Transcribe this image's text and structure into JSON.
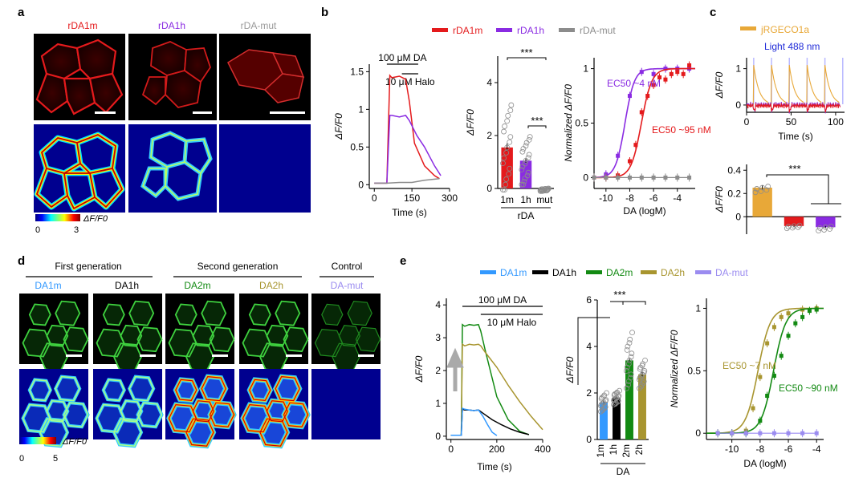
{
  "panels": {
    "a": "a",
    "b": "b",
    "c": "c",
    "d": "d",
    "e": "e"
  },
  "panel_a": {
    "titles": [
      "rDA1m",
      "rDA1h",
      "rDA-mut"
    ],
    "colorbar_label": "ΔF/F0",
    "colorbar_min": "0",
    "colorbar_max": "3",
    "colors": {
      "rDA1m": "#e41a1c",
      "rDA1h": "#8a2be2",
      "rDA-mut": "#999999"
    }
  },
  "panel_b_legend": [
    "rDA1m",
    "rDA1h",
    "rDA-mut"
  ],
  "panel_c_legend": "jRGECO1a",
  "panel_c_light": "Light 488 nm",
  "panel_d": {
    "groups": [
      "First generation",
      "Second generation",
      "Control"
    ],
    "titles": [
      "DA1m",
      "DA1h",
      "DA2m",
      "DA2h",
      "DA-mut"
    ],
    "colorbar_label": "ΔF/F0",
    "colorbar_min": "0",
    "colorbar_max": "5"
  },
  "panel_e_legend": [
    "DA1m",
    "DA1h",
    "DA2m",
    "DA2h",
    "DA-mut"
  ],
  "colors": {
    "red": "#e41a1c",
    "purple": "#8a2be2",
    "gray": "#8c8c8c",
    "orange": "#e8a838",
    "blue_light": "#3399ff",
    "blue_dark": "#1f2ad8",
    "black": "#000000",
    "green": "#138a13",
    "olive": "#a8952f",
    "lavender": "#9b8cf0"
  },
  "chart_data": [
    {
      "id": "b1",
      "type": "line",
      "title": "",
      "xlabel": "Time (s)",
      "ylabel": "ΔF/F0",
      "xlim": [
        -20,
        300
      ],
      "ylim": [
        -0.05,
        1.6
      ],
      "xticks": [
        0,
        150,
        300
      ],
      "yticks": [
        0,
        0.5,
        1.0,
        1.5
      ],
      "annotations": [
        "100 μM DA",
        "10 μM Halo"
      ],
      "series": [
        {
          "name": "rDA1m",
          "color": "#e41a1c",
          "x": [
            0,
            50,
            62,
            70,
            100,
            125,
            140,
            160,
            200,
            240,
            260
          ],
          "y": [
            0.02,
            0.02,
            1.45,
            1.42,
            1.44,
            1.4,
            1.1,
            0.55,
            0.25,
            0.12,
            0.08
          ]
        },
        {
          "name": "rDA1h",
          "color": "#8a2be2",
          "x": [
            0,
            50,
            62,
            70,
            100,
            125,
            140,
            170,
            200,
            240,
            265
          ],
          "y": [
            0.02,
            0.02,
            0.92,
            0.92,
            0.9,
            0.92,
            0.85,
            0.65,
            0.5,
            0.25,
            0.12
          ]
        },
        {
          "name": "rDA-mut",
          "color": "#8c8c8c",
          "x": [
            0,
            50,
            100,
            150,
            200,
            260
          ],
          "y": [
            0.02,
            0.02,
            0.03,
            0.03,
            0.06,
            0.08
          ]
        }
      ]
    },
    {
      "id": "b2",
      "type": "bar",
      "title": "",
      "xlabel": "rDA",
      "ylabel": "ΔF/F0",
      "categories": [
        "1m",
        "1h",
        "mut"
      ],
      "values": [
        1.55,
        1.05,
        -0.05
      ],
      "errors": [
        0.15,
        0.08,
        0.02
      ],
      "colors": [
        "#e41a1c",
        "#8a2be2",
        "#8c8c8c"
      ],
      "ylim": [
        0,
        5
      ],
      "yticks": [
        0,
        2,
        4
      ],
      "significance": [
        "***",
        "***"
      ]
    },
    {
      "id": "b3",
      "type": "line",
      "title": "",
      "xlabel": "DA (logM)",
      "ylabel": "Normalized ΔF/F0",
      "xlim": [
        -11,
        -2.5
      ],
      "ylim": [
        -0.1,
        1.1
      ],
      "xticks": [
        -10,
        -8,
        -6,
        -4
      ],
      "yticks": [
        0,
        0.5,
        1.0
      ],
      "annotations": [
        "EC50 ~4 nM",
        "EC50 ~95 nM"
      ],
      "series": [
        {
          "name": "rDA1h",
          "color": "#8a2be2",
          "ec50_log": -8.4,
          "hill": 1.1,
          "points_x": [
            -11,
            -10,
            -9,
            -8,
            -7,
            -6,
            -5,
            -4,
            -3
          ],
          "points_y": [
            0.0,
            0.03,
            0.2,
            0.75,
            0.97,
            0.95,
            1.0,
            1.0,
            1.0
          ]
        },
        {
          "name": "rDA1m",
          "color": "#e41a1c",
          "ec50_log": -7.02,
          "hill": 1.0,
          "points_x": [
            -11,
            -10,
            -9,
            -8,
            -7.5,
            -7,
            -6.5,
            -6,
            -5.5,
            -5,
            -4.5,
            -4,
            -3.5,
            -3
          ],
          "points_y": [
            0.0,
            0.0,
            0.02,
            0.15,
            0.3,
            0.6,
            0.75,
            0.85,
            0.92,
            0.9,
            0.95,
            0.97,
            0.95,
            1.03
          ]
        },
        {
          "name": "rDA-mut",
          "color": "#8c8c8c",
          "ec50_log": null,
          "hill": null,
          "points_x": [
            -11,
            -10,
            -9,
            -8,
            -7,
            -6,
            -5,
            -4,
            -3
          ],
          "points_y": [
            0,
            0,
            0,
            0,
            0,
            0,
            0,
            0,
            0
          ]
        }
      ]
    },
    {
      "id": "c1",
      "type": "line",
      "title": "",
      "xlabel": "Time (s)",
      "ylabel": "ΔF/F0",
      "xlim": [
        0,
        110
      ],
      "ylim": [
        -0.2,
        1.3
      ],
      "xticks": [
        0,
        50,
        100
      ],
      "yticks": [
        0,
        1
      ],
      "light_pulses_s": [
        8,
        28,
        48,
        68,
        88,
        108
      ],
      "series": [
        {
          "name": "jRGECO1a",
          "color": "#e8a838"
        },
        {
          "name": "rDA1h",
          "color": "#8a2be2"
        },
        {
          "name": "rDA1m",
          "color": "#e41a1c"
        }
      ]
    },
    {
      "id": "c2",
      "type": "bar",
      "title": "",
      "xlabel": "",
      "ylabel": "ΔF/F0",
      "categories": [
        "jRGECO1a",
        "rDA1m",
        "rDA1h"
      ],
      "values": [
        0.25,
        -0.08,
        -0.09
      ],
      "errors": [
        0.02,
        0.01,
        0.01
      ],
      "colors": [
        "#e8a838",
        "#e41a1c",
        "#8a2be2"
      ],
      "ylim": [
        -0.15,
        0.45
      ],
      "yticks": [
        0,
        0.2,
        0.4
      ],
      "significance": [
        "***"
      ]
    },
    {
      "id": "e1",
      "type": "line",
      "title": "",
      "xlabel": "Time (s)",
      "ylabel": "ΔF/F0",
      "xlim": [
        -20,
        400
      ],
      "ylim": [
        -0.1,
        4.2
      ],
      "xticks": [
        0,
        200,
        400
      ],
      "yticks": [
        0,
        1,
        2,
        3,
        4
      ],
      "annotations": [
        "100 μM DA",
        "10 μM Halo"
      ],
      "series": [
        {
          "name": "DA2m",
          "color": "#138a13",
          "x": [
            0,
            45,
            50,
            60,
            80,
            100,
            120,
            130,
            150,
            200,
            250,
            300,
            340
          ],
          "y": [
            0.03,
            0.03,
            3.4,
            3.35,
            3.4,
            3.38,
            3.4,
            3.2,
            2.6,
            1.2,
            0.5,
            0.15,
            0.05
          ]
        },
        {
          "name": "DA2h",
          "color": "#a8952f",
          "x": [
            0,
            45,
            50,
            60,
            80,
            100,
            120,
            130,
            150,
            200,
            250,
            300,
            350,
            400
          ],
          "y": [
            0.03,
            0.03,
            2.8,
            2.75,
            2.8,
            2.78,
            2.8,
            2.75,
            2.55,
            2.1,
            1.55,
            1.05,
            0.6,
            0.2
          ]
        },
        {
          "name": "DA1h",
          "color": "#000000",
          "x": [
            0,
            45,
            50,
            60,
            80,
            100,
            120,
            140,
            180,
            220,
            260,
            300,
            340
          ],
          "y": [
            0.03,
            0.03,
            0.82,
            0.8,
            0.8,
            0.78,
            0.8,
            0.7,
            0.5,
            0.35,
            0.22,
            0.12,
            0.05
          ]
        },
        {
          "name": "DA1m",
          "color": "#3399ff",
          "x": [
            0,
            45,
            50,
            60,
            80,
            100,
            120,
            140,
            160,
            180,
            200
          ],
          "y": [
            0.03,
            0.03,
            0.85,
            0.82,
            0.8,
            0.78,
            0.8,
            0.6,
            0.35,
            0.12,
            0.02
          ]
        }
      ]
    },
    {
      "id": "e2",
      "type": "bar",
      "title": "",
      "xlabel": "DA",
      "ylabel": "ΔF/F0",
      "categories": [
        "1m",
        "1h",
        "2m",
        "2h"
      ],
      "values": [
        1.6,
        1.8,
        3.4,
        2.8
      ],
      "errors": [
        0.1,
        0.08,
        0.12,
        0.1
      ],
      "colors": [
        "#3399ff",
        "#000000",
        "#138a13",
        "#a8952f"
      ],
      "ylim": [
        0,
        6
      ],
      "yticks": [
        0,
        2,
        4,
        6
      ],
      "significance": [
        "***"
      ]
    },
    {
      "id": "e3",
      "type": "line",
      "title": "",
      "xlabel": "DA (logM)",
      "ylabel": "Normalized ΔF/F0",
      "xlim": [
        -11.8,
        -3.5
      ],
      "ylim": [
        -0.05,
        1.08
      ],
      "xticks": [
        -10,
        -8,
        -6,
        -4
      ],
      "yticks": [
        0,
        0.5,
        1.0
      ],
      "annotations": [
        "EC50 ~7 nM",
        "EC50 ~90 nM"
      ],
      "series": [
        {
          "name": "DA2h",
          "color": "#a8952f",
          "ec50_log": -8.15,
          "hill": 1.0,
          "points_x": [
            -11,
            -10,
            -9,
            -8.5,
            -8,
            -7.5,
            -7,
            -6.5,
            -6,
            -5,
            -4
          ],
          "points_y": [
            0.0,
            0.0,
            0.02,
            0.2,
            0.45,
            0.72,
            0.85,
            0.93,
            0.96,
            0.99,
            1.0
          ]
        },
        {
          "name": "DA2m",
          "color": "#138a13",
          "ec50_log": -7.05,
          "hill": 1.0,
          "points_x": [
            -11,
            -10,
            -9,
            -8,
            -7.5,
            -7,
            -6.5,
            -6,
            -5.5,
            -5,
            -4.5,
            -4
          ],
          "points_y": [
            0.0,
            0.0,
            0.0,
            0.1,
            0.3,
            0.46,
            0.62,
            0.78,
            0.88,
            0.93,
            0.98,
            0.99
          ]
        },
        {
          "name": "DA-mut",
          "color": "#9b8cf0",
          "ec50_log": null,
          "hill": null,
          "points_x": [
            -11,
            -10,
            -9,
            -8,
            -7,
            -6,
            -5,
            -4
          ],
          "points_y": [
            0,
            0,
            0,
            0,
            0,
            0,
            0,
            0
          ]
        }
      ]
    }
  ]
}
